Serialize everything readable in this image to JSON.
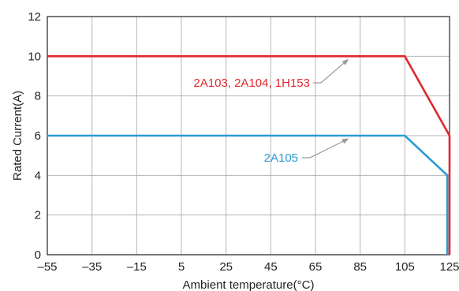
{
  "chart_data": {
    "type": "line",
    "xlabel": "Ambient temperature(°C)",
    "ylabel": "Rated Current(A)",
    "xlim": [
      -55,
      125
    ],
    "ylim": [
      0,
      12
    ],
    "x_ticks": [
      "–55",
      "–35",
      "–15",
      "5",
      "25",
      "45",
      "65",
      "85",
      "105",
      "125"
    ],
    "y_ticks": [
      "0",
      "2",
      "4",
      "6",
      "8",
      "10",
      "12"
    ],
    "grid": true,
    "series": [
      {
        "name": "2A103, 2A104, 1H153",
        "color": "#e0282e",
        "points": [
          [
            -55,
            10
          ],
          [
            105,
            10
          ],
          [
            125,
            6
          ],
          [
            125,
            0
          ]
        ],
        "annotation_anchor": [
          80,
          10
        ]
      },
      {
        "name": "2A105",
        "color": "#2a9bd4",
        "points": [
          [
            -55,
            6
          ],
          [
            105,
            6
          ],
          [
            124,
            4
          ],
          [
            124,
            0
          ]
        ],
        "annotation_anchor": [
          80,
          6
        ]
      }
    ],
    "annotation_arrow_color": "#999999"
  }
}
